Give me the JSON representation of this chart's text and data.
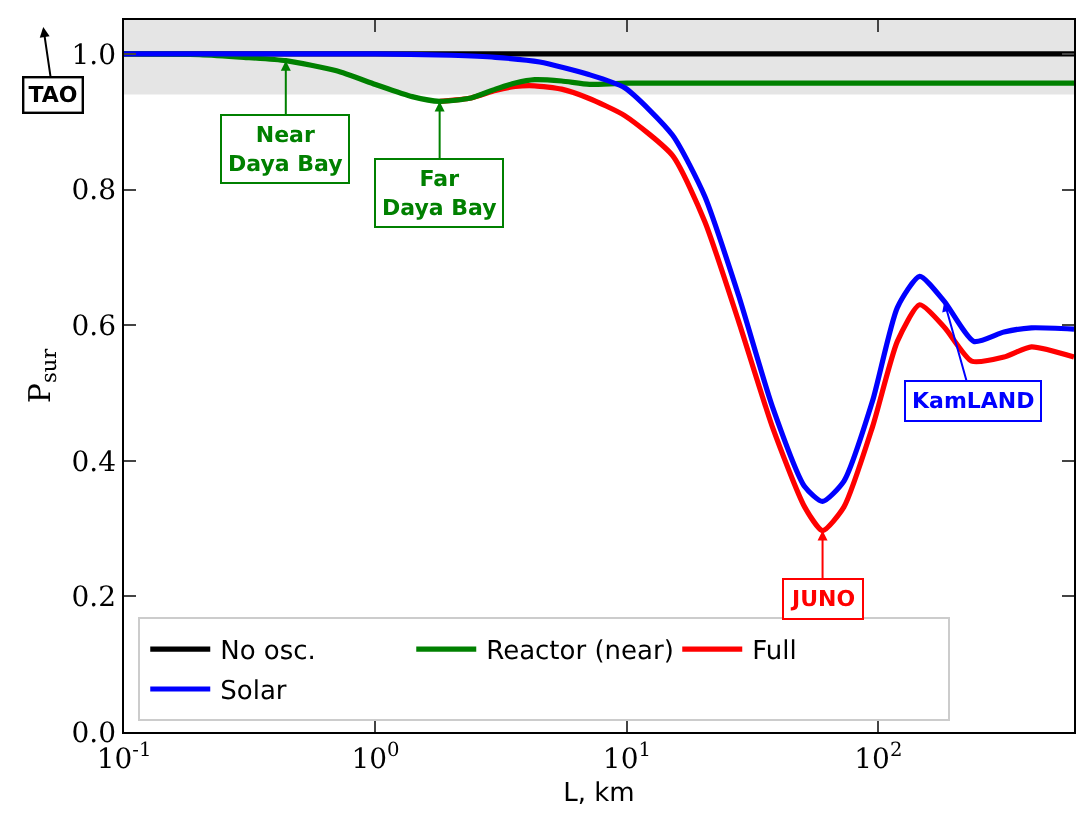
{
  "chart_data": {
    "type": "line",
    "xlabel": "L, km",
    "ylabel": "P$_{sur}$",
    "log": "x",
    "xlim": [
      0.1,
      600
    ],
    "xticks": [
      {
        "value": 0.1,
        "label": "10$^{-1}$"
      },
      {
        "value": 1,
        "label": "10$^{0}$"
      },
      {
        "value": 10,
        "label": "10$^{1}$"
      },
      {
        "value": 100,
        "label": "10$^{2}$"
      }
    ],
    "ylim": [
      0,
      1.05
    ],
    "yticks": [
      {
        "value": 0,
        "label": "0.0"
      },
      0.2,
      0.4,
      0.6,
      0.8,
      {
        "value": 1,
        "label": "1.0"
      }
    ],
    "grid": false,
    "legend": "bottom left",
    "bands": [
      {
        "axis": "y",
        "from": 0.94,
        "to": 1.05,
        "color": "#e5e5e5"
      }
    ],
    "series": [
      {
        "name": "No osc.",
        "color": "#000000",
        "x": [
          0.1,
          600
        ],
        "values": [
          1,
          1
        ]
      },
      {
        "name": "Full",
        "color": "#ff0000",
        "x": [
          1.8,
          2.4,
          3.0,
          3.6,
          4.3,
          5.5,
          7,
          9.8,
          15.2,
          20.4,
          27.8,
          37.9,
          50.9,
          60,
          73,
          94.8,
          119,
          146,
          183,
          235,
          316,
          406,
          600
        ],
        "values": [
          0.93,
          0.935,
          0.946,
          0.952,
          0.953,
          0.948,
          0.935,
          0.909,
          0.85,
          0.753,
          0.606,
          0.45,
          0.332,
          0.297,
          0.332,
          0.45,
          0.576,
          0.63,
          0.597,
          0.547,
          0.553,
          0.568,
          0.553
        ]
      },
      {
        "name": "Reactor (near)",
        "color": "#008000",
        "x": [
          0.1,
          0.2,
          0.3,
          0.44,
          0.7,
          1.0,
          1.4,
          1.8,
          2.4,
          3.0,
          3.6,
          4.3,
          5.5,
          7.1,
          10,
          600
        ],
        "values": [
          1,
          0.999,
          0.995,
          0.99,
          0.975,
          0.955,
          0.937,
          0.93,
          0.935,
          0.948,
          0.957,
          0.962,
          0.96,
          0.955,
          0.957,
          0.957
        ]
      },
      {
        "name": "Solar",
        "color": "#0000ff",
        "x": [
          0.1,
          1,
          2,
          3,
          4.5,
          7,
          9.8,
          15.2,
          20.4,
          27.8,
          37.9,
          50.9,
          60,
          73,
          94.8,
          119,
          146,
          183,
          240,
          316,
          406,
          600
        ],
        "values": [
          1,
          1,
          0.998,
          0.995,
          0.988,
          0.97,
          0.95,
          0.88,
          0.79,
          0.644,
          0.48,
          0.362,
          0.34,
          0.37,
          0.488,
          0.626,
          0.672,
          0.635,
          0.576,
          0.59,
          0.596,
          0.594
        ]
      }
    ],
    "annotations": [
      "TAO",
      {
        "text": "Near\nDaya Bay",
        "x": 0.44,
        "y": 0.99
      },
      {
        "text": "Far\nDaya Bay",
        "x": 1.8,
        "y": 0.93
      },
      {
        "text": "JUNO",
        "x": 60,
        "y": 0.297
      },
      {
        "text": "KamLAND",
        "x": 183,
        "y": 0.635
      }
    ]
  }
}
